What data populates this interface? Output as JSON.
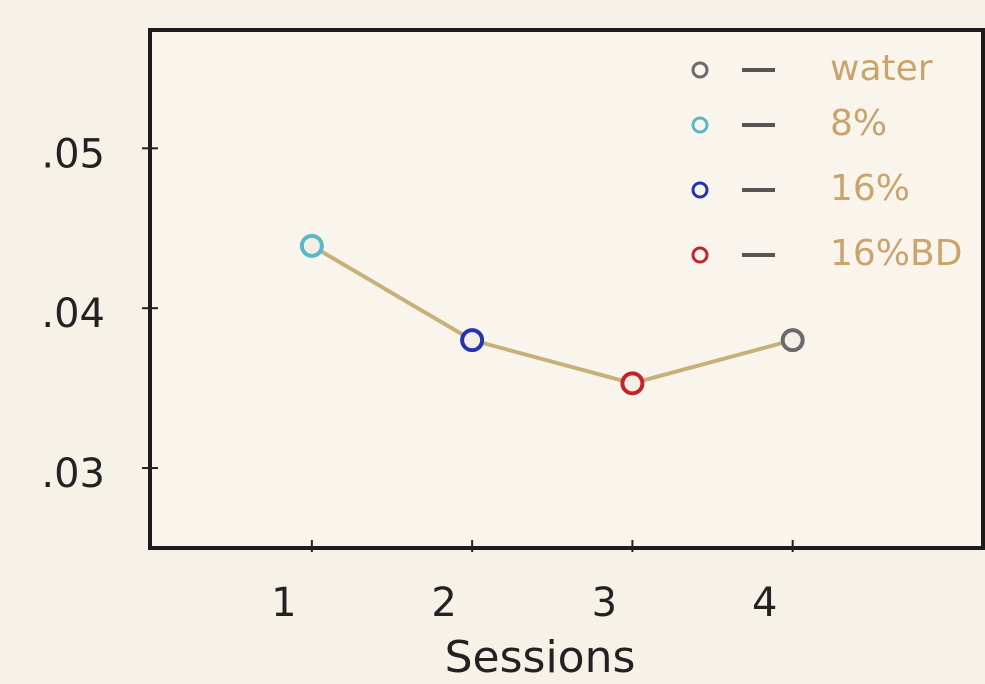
{
  "chart_data": {
    "type": "line",
    "x_label": "Sessions",
    "x": [
      1,
      2,
      3,
      4
    ],
    "xlim": [
      -0.01,
      5.2
    ],
    "xticks": [
      1,
      2,
      3,
      4
    ],
    "ylim": [
      0.025,
      0.0574
    ],
    "yticks": [
      {
        "value": 0.05,
        "label": ".05"
      },
      {
        "value": 0.04,
        "label": ".04"
      },
      {
        "value": 0.03,
        "label": ".03"
      }
    ],
    "series": [
      {
        "color": "#c8b07a",
        "values": [
          0.0439,
          0.038,
          0.0353,
          0.038
        ],
        "point_colors": [
          "#5bb8c9",
          "#2433b0",
          "#c0262e",
          "#6a6a6a"
        ]
      }
    ],
    "legend": [
      {
        "label": "water",
        "color": "#6a6a6a"
      },
      {
        "label": "8%",
        "color": "#5bb8c9"
      },
      {
        "label": "16%",
        "color": "#2433b0"
      },
      {
        "label": "16%BD",
        "color": "#c0262e"
      }
    ]
  }
}
